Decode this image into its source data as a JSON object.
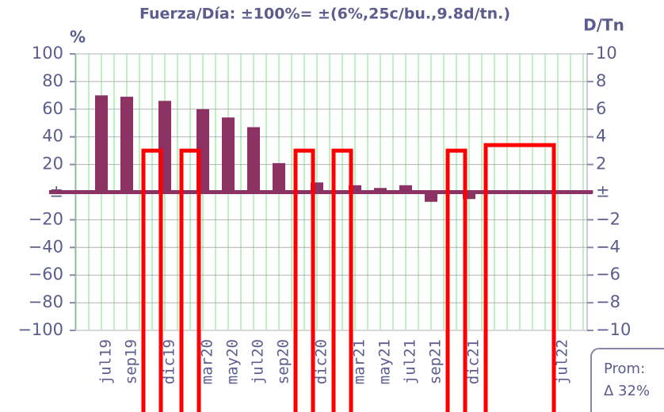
{
  "chart_data": {
    "type": "bar",
    "title": "Fuerza/Día: ±100%= ±(6%,25c/bu.,9.8d/tn.)",
    "ylabel": "%",
    "y2label": "D/Tn",
    "categories": [
      null,
      null,
      "jul19",
      null,
      "sep19",
      null,
      null,
      "dic19",
      null,
      null,
      "mar20",
      null,
      "may20",
      null,
      "jul20",
      null,
      "sep20",
      null,
      null,
      "dic20",
      null,
      null,
      "mar21",
      null,
      "may21",
      null,
      "jul21",
      null,
      "sep21",
      null,
      null,
      "dic21",
      null,
      null,
      null,
      null,
      null,
      null,
      "jul22",
      null,
      null
    ],
    "values": [
      null,
      null,
      70,
      null,
      69,
      null,
      null,
      66,
      null,
      null,
      60,
      null,
      54,
      null,
      47,
      null,
      21,
      null,
      null,
      7,
      null,
      null,
      5,
      null,
      3,
      null,
      5,
      null,
      -7,
      null,
      null,
      -5,
      null,
      null,
      null,
      null,
      null,
      null,
      null,
      null,
      null
    ],
    "color": "#8b3163",
    "overlay": {
      "axis": "y2",
      "color": "#ff0000",
      "values": [
        null,
        null,
        null,
        null,
        null,
        null,
        3,
        null,
        null,
        3,
        null,
        null,
        null,
        null,
        null,
        null,
        null,
        null,
        3,
        null,
        null,
        3,
        null,
        null,
        null,
        null,
        null,
        null,
        null,
        null,
        3,
        null,
        null,
        3.4,
        3.4,
        3.4,
        3.4,
        3.4,
        null,
        null,
        null
      ]
    },
    "ylim": [
      -100,
      100
    ],
    "yticks": [
      {
        "value": -100,
        "label": "−100"
      },
      {
        "value": -80,
        "label": "−80"
      },
      {
        "value": -60,
        "label": "−60"
      },
      {
        "value": -40,
        "label": "−40"
      },
      {
        "value": -20,
        "label": "−20"
      },
      {
        "value": 0,
        "label": "±"
      },
      20,
      40,
      60,
      80,
      100
    ],
    "y2lim": [
      -10,
      10
    ],
    "y2ticks": [
      {
        "value": -10,
        "label": "−10"
      },
      {
        "value": -8,
        "label": "−8"
      },
      {
        "value": -6,
        "label": "−6"
      },
      {
        "value": -4,
        "label": "−4"
      },
      {
        "value": -2,
        "label": "−2"
      },
      {
        "value": 0,
        "label": "±"
      },
      2,
      4,
      6,
      8,
      10
    ],
    "grid": true,
    "note": {
      "line1": "Prom:",
      "line2": "Δ 32%"
    }
  }
}
